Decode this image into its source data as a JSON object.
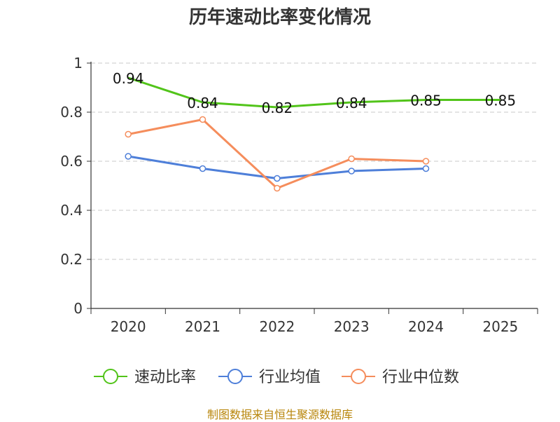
{
  "chart_data": {
    "type": "line",
    "title": "历年速动比率变化情况",
    "categories": [
      "2020",
      "2021",
      "2022",
      "2023",
      "2024",
      "2025"
    ],
    "ylim": [
      0,
      1
    ],
    "yticks": [
      "0",
      "0.2",
      "0.4",
      "0.6",
      "0.8",
      "1"
    ],
    "grid": true,
    "legend_position": "bottom",
    "series": [
      {
        "name": "速动比率",
        "color": "#52c41a",
        "values": [
          0.94,
          0.84,
          0.82,
          0.84,
          0.85,
          0.85
        ],
        "labels": [
          "0.94",
          "0.84",
          "0.82",
          "0.84",
          "0.85",
          "0.85"
        ],
        "show_markers": false
      },
      {
        "name": "行业均值",
        "color": "#4e7fd9",
        "values": [
          0.62,
          0.57,
          0.53,
          0.56,
          0.57,
          null
        ],
        "show_markers": true
      },
      {
        "name": "行业中位数",
        "color": "#f58d5c",
        "values": [
          0.71,
          0.77,
          0.49,
          0.61,
          0.6,
          null
        ],
        "show_markers": true
      }
    ]
  },
  "source": "制图数据来自恒生聚源数据库"
}
